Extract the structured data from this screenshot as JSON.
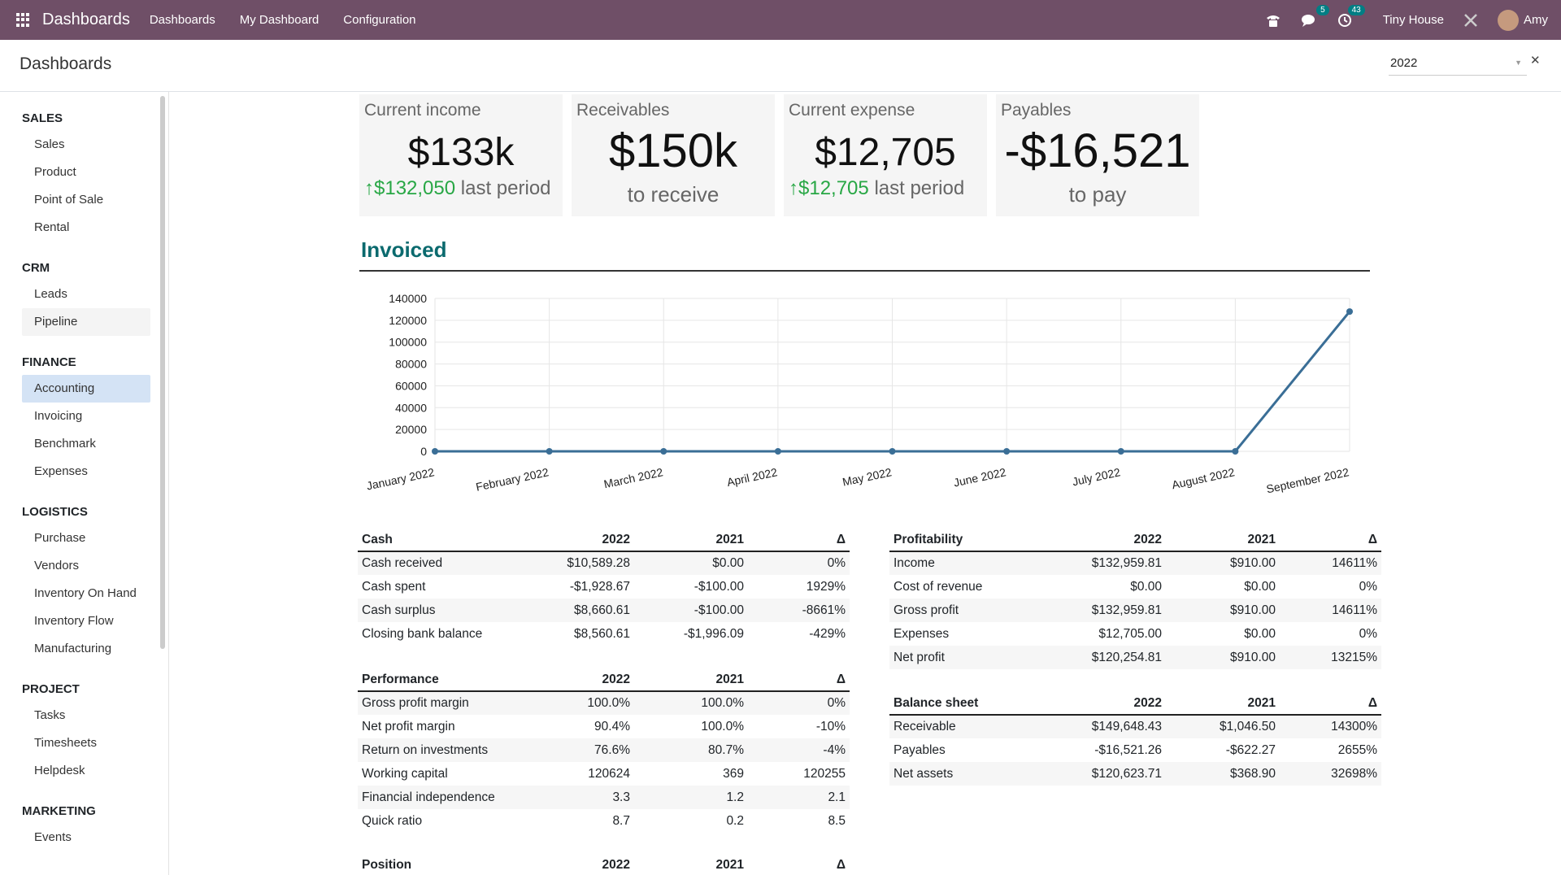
{
  "navbar": {
    "app_title": "Dashboards",
    "menu": [
      "Dashboards",
      "My Dashboard",
      "Configuration"
    ],
    "messages_count": "5",
    "activities_count": "43",
    "company": "Tiny House",
    "user": "Amy"
  },
  "control_panel": {
    "title": "Dashboards",
    "year_filter": "2022"
  },
  "sidebar": {
    "sections": [
      {
        "title": "SALES",
        "items": [
          "Sales",
          "Product",
          "Point of Sale",
          "Rental"
        ]
      },
      {
        "title": "CRM",
        "items": [
          "Leads",
          "Pipeline"
        ]
      },
      {
        "title": "FINANCE",
        "items": [
          "Accounting",
          "Invoicing",
          "Benchmark",
          "Expenses"
        ]
      },
      {
        "title": "LOGISTICS",
        "items": [
          "Purchase",
          "Vendors",
          "Inventory On Hand",
          "Inventory Flow",
          "Manufacturing"
        ]
      },
      {
        "title": "PROJECT",
        "items": [
          "Tasks",
          "Timesheets",
          "Helpdesk"
        ]
      },
      {
        "title": "MARKETING",
        "items": [
          "Events"
        ]
      }
    ],
    "active_item": "Accounting",
    "hover_item": "Pipeline"
  },
  "kpis": {
    "income": {
      "label": "Current income",
      "value": "$133k",
      "trend": "$132,050",
      "trend_suffix": "last period"
    },
    "receivables": {
      "label": "Receivables",
      "value": "$150k",
      "sub": "to receive"
    },
    "expense": {
      "label": "Current expense",
      "value": "$12,705",
      "trend": "$12,705",
      "trend_suffix": "last period"
    },
    "payables": {
      "label": "Payables",
      "value": "-$16,521",
      "sub": "to pay"
    }
  },
  "invoiced": {
    "title": "Invoiced"
  },
  "chart_data": {
    "type": "line",
    "categories": [
      "January 2022",
      "February 2022",
      "March 2022",
      "April 2022",
      "May 2022",
      "June 2022",
      "July 2022",
      "August 2022",
      "September 2022"
    ],
    "series": [
      {
        "values": [
          0,
          0,
          0,
          0,
          0,
          0,
          0,
          0,
          128000
        ]
      }
    ],
    "yticks": [
      "0",
      "20000",
      "40000",
      "60000",
      "80000",
      "100000",
      "120000",
      "140000"
    ],
    "ylim": [
      0,
      140000
    ],
    "grid": true,
    "line_color": "#3a6e96",
    "title": "",
    "xlabel": "",
    "ylabel": ""
  },
  "tables": {
    "cash": {
      "headers": [
        "Cash",
        "2022",
        "2021",
        "Δ"
      ],
      "rows": [
        [
          "Cash received",
          "$10,589.28",
          "$0.00",
          "0%"
        ],
        [
          "Cash spent",
          "-$1,928.67",
          "-$100.00",
          "1929%"
        ],
        [
          "Cash surplus",
          "$8,660.61",
          "-$100.00",
          "-8661%"
        ],
        [
          "Closing bank balance",
          "$8,560.61",
          "-$1,996.09",
          "-429%"
        ]
      ]
    },
    "performance": {
      "headers": [
        "Performance",
        "2022",
        "2021",
        "Δ"
      ],
      "rows": [
        [
          "Gross profit margin",
          "100.0%",
          "100.0%",
          "0%"
        ],
        [
          "Net profit margin",
          "90.4%",
          "100.0%",
          "-10%"
        ],
        [
          "Return on investments",
          "76.6%",
          "80.7%",
          "-4%"
        ],
        [
          "Working capital",
          "120624",
          "369",
          "120255"
        ],
        [
          "Financial independence",
          "3.3",
          "1.2",
          "2.1"
        ],
        [
          "Quick ratio",
          "8.7",
          "0.2",
          "8.5"
        ]
      ]
    },
    "position": {
      "headers": [
        "Position",
        "2022",
        "2021",
        "Δ"
      ]
    },
    "profitability": {
      "headers": [
        "Profitability",
        "2022",
        "2021",
        "Δ"
      ],
      "rows": [
        [
          "Income",
          "$132,959.81",
          "$910.00",
          "14611%"
        ],
        [
          "Cost of revenue",
          "$0.00",
          "$0.00",
          "0%"
        ],
        [
          "Gross profit",
          "$132,959.81",
          "$910.00",
          "14611%"
        ],
        [
          "Expenses",
          "$12,705.00",
          "$0.00",
          "0%"
        ],
        [
          "Net profit",
          "$120,254.81",
          "$910.00",
          "13215%"
        ]
      ]
    },
    "balance": {
      "headers": [
        "Balance sheet",
        "2022",
        "2021",
        "Δ"
      ],
      "rows": [
        [
          "Receivable",
          "$149,648.43",
          "$1,046.50",
          "14300%"
        ],
        [
          "Payables",
          "-$16,521.26",
          "-$622.27",
          "2655%"
        ],
        [
          "Net assets",
          "$120,623.71",
          "$368.90",
          "32698%"
        ]
      ]
    }
  }
}
